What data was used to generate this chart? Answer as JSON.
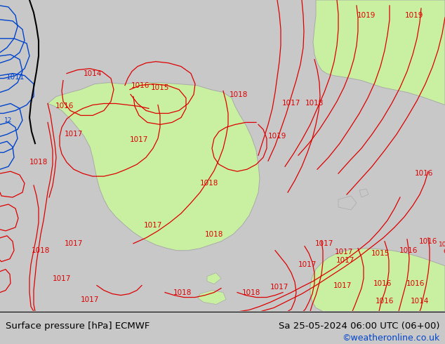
{
  "title_left": "Surface pressure [hPa] ECMWF",
  "title_right": "Sa 25-05-2024 06:00 UTC (06+00)",
  "credit": "©weatheronline.co.uk",
  "bg_color": "#c8c8c8",
  "land_green": "#c8f0a0",
  "land_gray_outline": "#aaaaaa",
  "red": "#dd0000",
  "blue": "#0044cc",
  "black": "#000000",
  "footer_fontsize": 9.5,
  "credit_color": "#0044cc",
  "label_fs": 7.5
}
